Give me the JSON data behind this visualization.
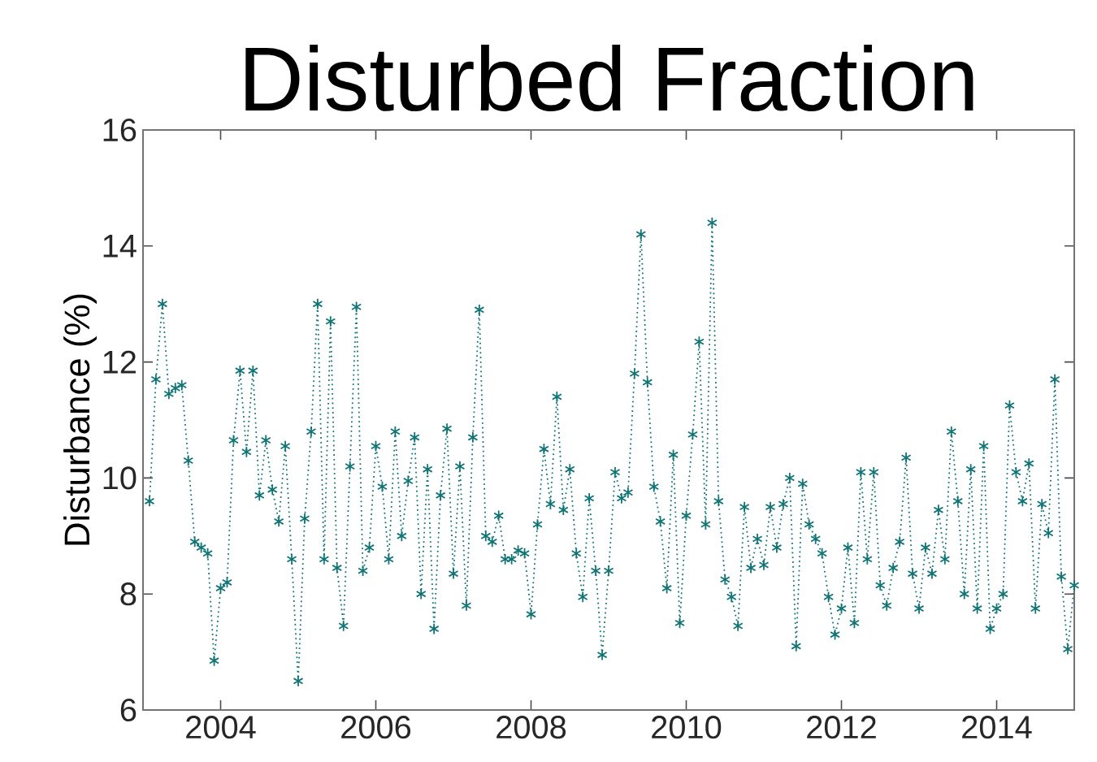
{
  "chart_data": {
    "type": "line",
    "title": "Disturbed Fraction",
    "ylabel": "Disturbance (%)",
    "x": [
      "2003-02",
      "2003-03",
      "2003-04",
      "2003-05",
      "2003-06",
      "2003-07",
      "2003-08",
      "2003-09",
      "2003-10",
      "2003-11",
      "2003-12",
      "2004-01",
      "2004-02",
      "2004-03",
      "2004-04",
      "2004-05",
      "2004-06",
      "2004-07",
      "2004-08",
      "2004-09",
      "2004-10",
      "2004-11",
      "2004-12",
      "2005-01",
      "2005-02",
      "2005-03",
      "2005-04",
      "2005-05",
      "2005-06",
      "2005-07",
      "2005-08",
      "2005-09",
      "2005-10",
      "2005-11",
      "2005-12",
      "2006-01",
      "2006-02",
      "2006-03",
      "2006-04",
      "2006-05",
      "2006-06",
      "2006-07",
      "2006-08",
      "2006-09",
      "2006-10",
      "2006-11",
      "2006-12",
      "2007-01",
      "2007-02",
      "2007-03",
      "2007-04",
      "2007-05",
      "2007-06",
      "2007-07",
      "2007-08",
      "2007-09",
      "2007-10",
      "2007-11",
      "2007-12",
      "2008-01",
      "2008-02",
      "2008-03",
      "2008-04",
      "2008-05",
      "2008-06",
      "2008-07",
      "2008-08",
      "2008-09",
      "2008-10",
      "2008-11",
      "2008-12",
      "2009-01",
      "2009-02",
      "2009-03",
      "2009-04",
      "2009-05",
      "2009-06",
      "2009-07",
      "2009-08",
      "2009-09",
      "2009-10",
      "2009-11",
      "2009-12",
      "2010-01",
      "2010-02",
      "2010-03",
      "2010-04",
      "2010-05",
      "2010-06",
      "2010-07",
      "2010-08",
      "2010-09",
      "2010-10",
      "2010-11",
      "2010-12",
      "2011-01",
      "2011-02",
      "2011-03",
      "2011-04",
      "2011-05",
      "2011-06",
      "2011-07",
      "2011-08",
      "2011-09",
      "2011-10",
      "2011-11",
      "2011-12",
      "2012-01",
      "2012-02",
      "2012-03",
      "2012-04",
      "2012-05",
      "2012-06",
      "2012-07",
      "2012-08",
      "2012-09",
      "2012-10",
      "2012-11",
      "2012-12",
      "2013-01",
      "2013-02",
      "2013-03",
      "2013-04",
      "2013-05",
      "2013-06",
      "2013-07",
      "2013-08",
      "2013-09",
      "2013-10",
      "2013-11",
      "2013-12",
      "2014-01",
      "2014-02",
      "2014-03",
      "2014-04",
      "2014-05",
      "2014-06",
      "2014-07",
      "2014-08",
      "2014-09",
      "2014-10",
      "2014-11",
      "2014-12",
      "2015-01"
    ],
    "series": [
      {
        "color": "#107474",
        "values": [
          9.6,
          11.7,
          13.0,
          11.45,
          11.55,
          11.6,
          10.3,
          8.9,
          8.8,
          8.7,
          6.85,
          8.1,
          8.2,
          10.65,
          11.85,
          10.45,
          11.85,
          9.7,
          10.65,
          9.8,
          9.25,
          10.55,
          8.6,
          6.5,
          9.3,
          10.8,
          13.0,
          8.6,
          12.7,
          8.45,
          7.45,
          10.2,
          12.95,
          8.4,
          8.8,
          10.55,
          9.85,
          8.6,
          10.8,
          9.0,
          9.95,
          10.7,
          8.0,
          10.15,
          7.4,
          9.7,
          10.85,
          8.35,
          10.2,
          7.8,
          10.7,
          12.9,
          9.0,
          8.9,
          9.35,
          8.6,
          8.6,
          8.75,
          8.7,
          7.65,
          9.2,
          10.5,
          9.55,
          11.4,
          9.45,
          10.15,
          8.7,
          7.95,
          9.65,
          8.4,
          6.95,
          8.4,
          10.1,
          9.65,
          9.75,
          11.8,
          14.2,
          11.65,
          9.85,
          9.25,
          8.1,
          10.4,
          7.5,
          9.35,
          10.75,
          12.35,
          9.2,
          14.4,
          9.6,
          8.25,
          7.95,
          7.45,
          9.5,
          8.45,
          8.95,
          8.5,
          9.5,
          8.8,
          9.55,
          10.0,
          7.1,
          9.9,
          9.2,
          8.95,
          8.7,
          7.95,
          7.3,
          7.75,
          8.8,
          7.5,
          10.1,
          8.6,
          10.1,
          8.15,
          7.8,
          8.45,
          8.9,
          10.35,
          8.35,
          7.75,
          8.8,
          8.35,
          9.45,
          8.6,
          10.8,
          9.6,
          8.0,
          10.15,
          7.75,
          10.55,
          7.4,
          7.75,
          8.0,
          11.25,
          10.1,
          9.6,
          10.25,
          7.75,
          9.55,
          9.05,
          11.7,
          8.3,
          7.05,
          8.15
        ]
      }
    ],
    "xlim": [
      "2003",
      "2015"
    ],
    "xticks": [
      "2004",
      "2006",
      "2008",
      "2010",
      "2012",
      "2014"
    ],
    "ylim": [
      6,
      16
    ],
    "yticks": [
      6,
      8,
      10,
      12,
      14,
      16
    ],
    "marker": "cross",
    "line_style": "dotted",
    "grid": false
  }
}
